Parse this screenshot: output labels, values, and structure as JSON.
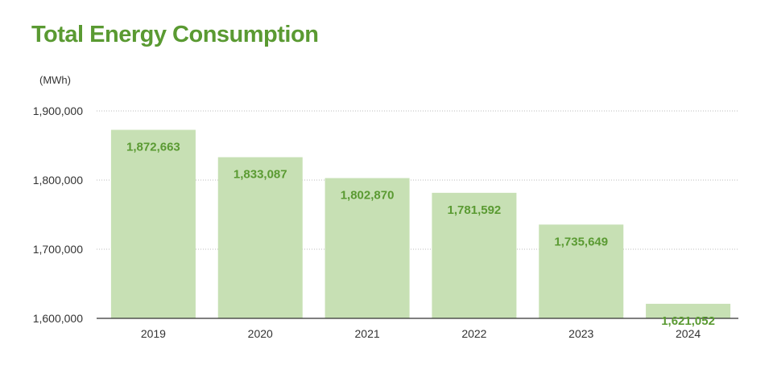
{
  "chart_data": {
    "type": "bar",
    "title": "Total Energy Consumption",
    "unit_label": "(MWh)",
    "categories": [
      "2019",
      "2020",
      "2021",
      "2022",
      "2023",
      "2024"
    ],
    "values": [
      1872663,
      1833087,
      1802870,
      1781592,
      1735649,
      1621052
    ],
    "value_labels": [
      "1,872,663",
      "1,833,087",
      "1,802,870",
      "1,781,592",
      "1,735,649",
      "1,621,052"
    ],
    "y_ticks": [
      1600000,
      1700000,
      1800000,
      1900000
    ],
    "y_tick_labels": [
      "1,600,000",
      "1,700,000",
      "1,800,000",
      "1,900,000"
    ],
    "ylim": [
      1600000,
      1900000
    ],
    "grid": true,
    "legend": "none",
    "colors": {
      "bar": "#c7e0b4",
      "title": "#5a9a32",
      "value_label": "#5a9a32",
      "grid": "#bbbbbb",
      "axis": "#333333"
    }
  }
}
